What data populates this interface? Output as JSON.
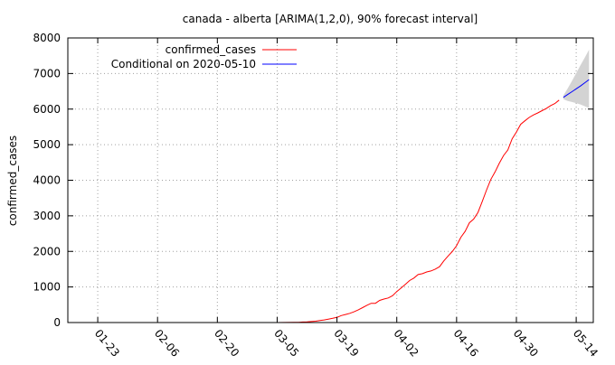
{
  "chart_data": {
    "type": "line",
    "title": "canada - alberta [ARIMA(1,2,0), 90% forecast interval]",
    "xlabel": "",
    "ylabel": "confirmed_cases",
    "x_is_date": true,
    "year": 2020,
    "xlim": [
      "2020-01-16",
      "2020-05-18"
    ],
    "ylim": [
      0,
      8000
    ],
    "yticks": [
      0,
      1000,
      2000,
      3000,
      4000,
      5000,
      6000,
      7000,
      8000
    ],
    "xticks": [
      "01-23",
      "02-06",
      "02-20",
      "03-05",
      "03-19",
      "04-02",
      "04-16",
      "04-30",
      "05-14"
    ],
    "grid": true,
    "legend_position": "top-left",
    "series": [
      {
        "name": "confirmed_cases",
        "color": "#ff0000",
        "points": [
          [
            "2020-03-05",
            1
          ],
          [
            "2020-03-07",
            2
          ],
          [
            "2020-03-09",
            4
          ],
          [
            "2020-03-10",
            7
          ],
          [
            "2020-03-11",
            14
          ],
          [
            "2020-03-12",
            19
          ],
          [
            "2020-03-13",
            29
          ],
          [
            "2020-03-14",
            39
          ],
          [
            "2020-03-15",
            56
          ],
          [
            "2020-03-16",
            74
          ],
          [
            "2020-03-17",
            97
          ],
          [
            "2020-03-18",
            119
          ],
          [
            "2020-03-19",
            146
          ],
          [
            "2020-03-20",
            195
          ],
          [
            "2020-03-21",
            226
          ],
          [
            "2020-03-22",
            259
          ],
          [
            "2020-03-23",
            301
          ],
          [
            "2020-03-24",
            358
          ],
          [
            "2020-03-25",
            419
          ],
          [
            "2020-03-26",
            486
          ],
          [
            "2020-03-27",
            542
          ],
          [
            "2020-03-28",
            542
          ],
          [
            "2020-03-29",
            621
          ],
          [
            "2020-03-30",
            661
          ],
          [
            "2020-03-31",
            690
          ],
          [
            "2020-04-01",
            754
          ],
          [
            "2020-04-02",
            871
          ],
          [
            "2020-04-03",
            968
          ],
          [
            "2020-04-04",
            1075
          ],
          [
            "2020-04-05",
            1181
          ],
          [
            "2020-04-06",
            1250
          ],
          [
            "2020-04-07",
            1348
          ],
          [
            "2020-04-08",
            1373
          ],
          [
            "2020-04-09",
            1423
          ],
          [
            "2020-04-10",
            1451
          ],
          [
            "2020-04-11",
            1500
          ],
          [
            "2020-04-12",
            1569
          ],
          [
            "2020-04-13",
            1732
          ],
          [
            "2020-04-14",
            1870
          ],
          [
            "2020-04-15",
            1996
          ],
          [
            "2020-04-16",
            2158
          ],
          [
            "2020-04-17",
            2397
          ],
          [
            "2020-04-18",
            2562
          ],
          [
            "2020-04-19",
            2803
          ],
          [
            "2020-04-20",
            2908
          ],
          [
            "2020-04-21",
            3095
          ],
          [
            "2020-04-22",
            3401
          ],
          [
            "2020-04-23",
            3720
          ],
          [
            "2020-04-24",
            4017
          ],
          [
            "2020-04-25",
            4233
          ],
          [
            "2020-04-26",
            4480
          ],
          [
            "2020-04-27",
            4696
          ],
          [
            "2020-04-28",
            4850
          ],
          [
            "2020-04-29",
            5165
          ],
          [
            "2020-04-30",
            5355
          ],
          [
            "2020-05-01",
            5573
          ],
          [
            "2020-05-02",
            5670
          ],
          [
            "2020-05-03",
            5766
          ],
          [
            "2020-05-04",
            5836
          ],
          [
            "2020-05-05",
            5893
          ],
          [
            "2020-05-06",
            5955
          ],
          [
            "2020-05-07",
            6017
          ],
          [
            "2020-05-08",
            6098
          ],
          [
            "2020-05-09",
            6157
          ],
          [
            "2020-05-10",
            6253
          ]
        ]
      },
      {
        "name": "Conditional on 2020-05-10",
        "color": "#0000ff",
        "points": [
          [
            "2020-05-11",
            6330
          ],
          [
            "2020-05-12",
            6410
          ],
          [
            "2020-05-13",
            6490
          ],
          [
            "2020-05-14",
            6570
          ],
          [
            "2020-05-15",
            6650
          ],
          [
            "2020-05-16",
            6740
          ],
          [
            "2020-05-17",
            6830
          ]
        ],
        "interval": {
          "color": "#d3d3d3",
          "lower": [
            6280,
            6230,
            6200,
            6170,
            6130,
            6080,
            6030
          ],
          "upper": [
            6380,
            6580,
            6790,
            7010,
            7230,
            7450,
            7670
          ]
        }
      }
    ]
  }
}
